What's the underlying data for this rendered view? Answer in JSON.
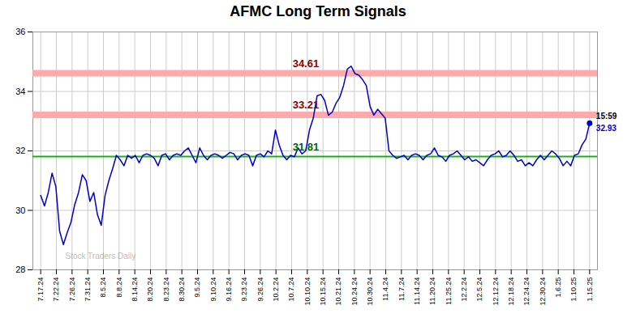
{
  "chart_data": {
    "type": "line",
    "title": "AFMC Long Term Signals",
    "x": [
      0,
      0.2414,
      0.4828,
      0.7241,
      0.9655,
      1.2069,
      1.4483,
      1.6897,
      1.931,
      2.1724,
      2.4138,
      2.6552,
      2.8966,
      3.1379,
      3.3793,
      3.6207,
      3.8621,
      4.1034,
      4.3448,
      4.5862,
      4.8276,
      5.069,
      5.3103,
      5.5517,
      5.7931,
      6.0345,
      6.2759,
      6.5172,
      6.7586,
      7,
      7.2414,
      7.4828,
      7.7241,
      7.9655,
      8.2069,
      8.4483,
      8.6897,
      8.931,
      9.1724,
      9.4138,
      9.6552,
      9.8966,
      10.1379,
      10.3793,
      10.6207,
      10.8621,
      11.1034,
      11.3448,
      11.5862,
      11.8276,
      12.069,
      12.3103,
      12.5517,
      12.7931,
      13.0345,
      13.2759,
      13.5172,
      13.7586,
      14,
      14.2414,
      14.4828,
      14.7241,
      14.9655,
      15.2069,
      15.4483,
      15.6897,
      15.931,
      16.1724,
      16.4138,
      16.6552,
      16.8966,
      17.1379,
      17.3793,
      17.6207,
      17.8621,
      18.1034,
      18.3448,
      18.5862,
      18.8276,
      19.069,
      19.3103,
      19.5517,
      19.7931,
      20.0345,
      20.2759,
      20.5172,
      20.7586,
      21,
      21.2414,
      21.4828,
      21.7241,
      21.9655,
      22.2069,
      22.4483,
      22.6897,
      22.931,
      23.1724,
      23.4138,
      23.6552,
      23.8966,
      24.1379,
      24.3793,
      24.6207,
      24.8621,
      25.1034,
      25.3448,
      25.5862,
      25.8276,
      26.069,
      26.3103,
      26.5517,
      26.7931,
      27.0345,
      27.2759,
      27.5172,
      27.7586,
      28,
      28.2414,
      28.4828,
      28.7241,
      28.9655,
      29.2069,
      29.4483,
      29.6897,
      29.931,
      30.1724,
      30.4138,
      30.6552,
      30.8966,
      31.1379,
      31.3793,
      31.6207,
      31.8621,
      32.1034,
      32.3448,
      32.5862,
      32.8276,
      33.069,
      33.3103,
      33.5517,
      33.7931,
      34.0345,
      34.2759,
      34.5172,
      34.7586,
      35
    ],
    "series": [
      {
        "color": "#0000cc",
        "values": [
          30.5,
          30.15,
          30.6,
          31.25,
          30.8,
          29.3,
          28.85,
          29.25,
          29.6,
          30.2,
          30.6,
          31.2,
          31.0,
          30.3,
          30.6,
          29.85,
          29.5,
          30.5,
          31.0,
          31.4,
          31.85,
          31.7,
          31.5,
          31.85,
          31.75,
          31.85,
          31.6,
          31.85,
          31.9,
          31.85,
          31.75,
          31.5,
          31.85,
          31.9,
          31.7,
          31.85,
          31.9,
          31.85,
          32.0,
          32.1,
          31.85,
          31.6,
          32.1,
          31.85,
          31.7,
          31.85,
          31.9,
          31.85,
          31.75,
          31.85,
          31.95,
          31.9,
          31.7,
          31.85,
          31.9,
          31.85,
          31.5,
          31.85,
          31.9,
          31.8,
          32.0,
          31.9,
          32.7,
          32.2,
          31.85,
          31.7,
          31.85,
          31.8,
          32.1,
          31.9,
          32.0,
          32.7,
          33.1,
          33.85,
          33.9,
          33.7,
          33.2,
          33.3,
          33.6,
          33.8,
          34.2,
          34.75,
          34.85,
          34.6,
          34.55,
          34.4,
          34.2,
          33.5,
          33.2,
          33.4,
          33.25,
          33.1,
          32.0,
          31.85,
          31.75,
          31.8,
          31.85,
          31.7,
          31.85,
          31.9,
          31.85,
          31.7,
          31.85,
          31.9,
          32.1,
          31.85,
          31.8,
          31.65,
          31.85,
          31.9,
          32.0,
          31.85,
          31.7,
          31.8,
          31.65,
          31.7,
          31.6,
          31.5,
          31.7,
          31.85,
          31.9,
          32.0,
          31.8,
          31.85,
          32.0,
          31.85,
          31.65,
          31.7,
          31.5,
          31.6,
          31.5,
          31.7,
          31.85,
          31.7,
          31.85,
          32.0,
          31.9,
          31.75,
          31.5,
          31.65,
          31.5,
          31.85,
          31.9,
          32.2,
          32.4,
          32.93
        ]
      }
    ],
    "xlim": [
      -0.5,
      35.5
    ],
    "xticks": [
      {
        "value": 0,
        "label": "7.17.24"
      },
      {
        "value": 1,
        "label": "7.22.24"
      },
      {
        "value": 2,
        "label": "7.26.24"
      },
      {
        "value": 3,
        "label": "7.31.24"
      },
      {
        "value": 4,
        "label": "8.5.24"
      },
      {
        "value": 5,
        "label": "8.8.24"
      },
      {
        "value": 6,
        "label": "8.14.24"
      },
      {
        "value": 7,
        "label": "8.20.24"
      },
      {
        "value": 8,
        "label": "8.23.24"
      },
      {
        "value": 9,
        "label": "8.30.24"
      },
      {
        "value": 10,
        "label": "9.5.24"
      },
      {
        "value": 11,
        "label": "9.10.24"
      },
      {
        "value": 12,
        "label": "9.16.24"
      },
      {
        "value": 13,
        "label": "9.23.24"
      },
      {
        "value": 14,
        "label": "9.26.24"
      },
      {
        "value": 15,
        "label": "10.2.24"
      },
      {
        "value": 16,
        "label": "10.7.24"
      },
      {
        "value": 17,
        "label": "10.10.24"
      },
      {
        "value": 18,
        "label": "10.15.24"
      },
      {
        "value": 19,
        "label": "10.21.24"
      },
      {
        "value": 20,
        "label": "10.24.24"
      },
      {
        "value": 21,
        "label": "10.30.24"
      },
      {
        "value": 22,
        "label": "11.4.24"
      },
      {
        "value": 23,
        "label": "11.7.24"
      },
      {
        "value": 24,
        "label": "11.14.24"
      },
      {
        "value": 25,
        "label": "11.20.24"
      },
      {
        "value": 26,
        "label": "11.25.24"
      },
      {
        "value": 27,
        "label": "12.2.24"
      },
      {
        "value": 28,
        "label": "12.5.24"
      },
      {
        "value": 29,
        "label": "12.12.24"
      },
      {
        "value": 30,
        "label": "12.18.24"
      },
      {
        "value": 31,
        "label": "12.24.24"
      },
      {
        "value": 32,
        "label": "12.30.24"
      },
      {
        "value": 33,
        "label": "1.6.25"
      },
      {
        "value": 34,
        "label": "1.10.25"
      },
      {
        "value": 35,
        "label": "1.15.25"
      }
    ],
    "ylim": [
      28,
      36
    ],
    "yticks": [
      28,
      30,
      32,
      34,
      36
    ],
    "grid": true,
    "hlines": [
      {
        "value": 34.61,
        "color": "#ffaaaa",
        "line_style": "band",
        "label": "34.61",
        "label_color": "#8b0000"
      },
      {
        "value": 33.21,
        "color": "#ffaaaa",
        "line_style": "band",
        "label": "33.21",
        "label_color": "#8b0000"
      },
      {
        "value": 31.81,
        "color": "#00aa00",
        "line_style": "solid",
        "label": "31.81",
        "label_color": "#006600"
      }
    ],
    "end_label": {
      "time": "15:59",
      "time_color": "#000000",
      "value_label": "32.93"
    },
    "watermark": "Stock Traders Daily"
  }
}
